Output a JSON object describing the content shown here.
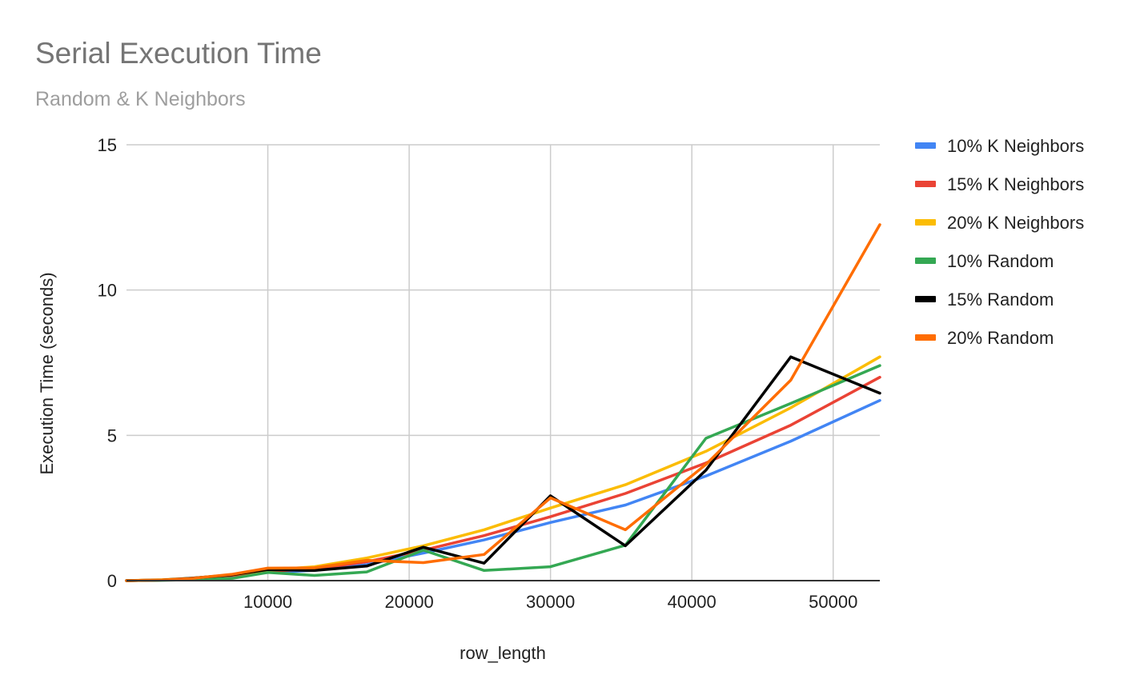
{
  "chart_data": {
    "type": "line",
    "title": "Serial Execution Time",
    "subtitle": "Random & K Neighbors",
    "xlabel": "row_length",
    "ylabel": "Execution Time (seconds)",
    "xlim": [
      0,
      53300
    ],
    "ylim": [
      0,
      15
    ],
    "xticks": [
      10000,
      20000,
      30000,
      40000,
      50000
    ],
    "yticks": [
      0,
      5,
      10,
      15
    ],
    "grid": true,
    "legend_position": "right",
    "series": [
      {
        "name": "10% K Neighbors",
        "color": "#4285F4",
        "points": [
          [
            0,
            0
          ],
          [
            2500,
            0.02
          ],
          [
            4500,
            0.06
          ],
          [
            7500,
            0.15
          ],
          [
            10000,
            0.28
          ],
          [
            13300,
            0.35
          ],
          [
            17000,
            0.55
          ],
          [
            21000,
            0.95
          ],
          [
            25300,
            1.4
          ],
          [
            30000,
            2.0
          ],
          [
            35300,
            2.6
          ],
          [
            41000,
            3.6
          ],
          [
            47000,
            4.8
          ],
          [
            53300,
            6.2
          ]
        ]
      },
      {
        "name": "15% K Neighbors",
        "color": "#EA4335",
        "points": [
          [
            0,
            0
          ],
          [
            2500,
            0.02
          ],
          [
            4500,
            0.07
          ],
          [
            7500,
            0.18
          ],
          [
            10000,
            0.32
          ],
          [
            13300,
            0.4
          ],
          [
            17000,
            0.65
          ],
          [
            21000,
            1.05
          ],
          [
            25300,
            1.55
          ],
          [
            30000,
            2.2
          ],
          [
            35300,
            3.0
          ],
          [
            41000,
            4.05
          ],
          [
            47000,
            5.35
          ],
          [
            53300,
            7.0
          ]
        ]
      },
      {
        "name": "20% K Neighbors",
        "color": "#FBBC04",
        "points": [
          [
            0,
            0
          ],
          [
            2500,
            0.03
          ],
          [
            4500,
            0.08
          ],
          [
            7500,
            0.2
          ],
          [
            10000,
            0.36
          ],
          [
            13300,
            0.48
          ],
          [
            17000,
            0.78
          ],
          [
            21000,
            1.2
          ],
          [
            25300,
            1.75
          ],
          [
            30000,
            2.5
          ],
          [
            35300,
            3.3
          ],
          [
            41000,
            4.45
          ],
          [
            47000,
            5.95
          ],
          [
            53300,
            7.7
          ]
        ]
      },
      {
        "name": "10% Random",
        "color": "#34A853",
        "points": [
          [
            0,
            0
          ],
          [
            2500,
            0.01
          ],
          [
            4500,
            0.03
          ],
          [
            7500,
            0.08
          ],
          [
            10000,
            0.28
          ],
          [
            13300,
            0.18
          ],
          [
            17000,
            0.3
          ],
          [
            21000,
            1.05
          ],
          [
            25300,
            0.35
          ],
          [
            30000,
            0.48
          ],
          [
            35300,
            1.22
          ],
          [
            41000,
            4.9
          ],
          [
            47000,
            6.1
          ],
          [
            53300,
            7.4
          ]
        ]
      },
      {
        "name": "15% Random",
        "color": "#000000",
        "points": [
          [
            0,
            0
          ],
          [
            2500,
            0.02
          ],
          [
            4500,
            0.08
          ],
          [
            7500,
            0.2
          ],
          [
            10000,
            0.38
          ],
          [
            13300,
            0.35
          ],
          [
            17000,
            0.5
          ],
          [
            21000,
            1.15
          ],
          [
            25300,
            0.6
          ],
          [
            30000,
            2.92
          ],
          [
            35300,
            1.2
          ],
          [
            41000,
            3.8
          ],
          [
            47000,
            7.7
          ],
          [
            53300,
            6.45
          ]
        ]
      },
      {
        "name": "20% Random",
        "color": "#FF6D01",
        "points": [
          [
            0,
            0
          ],
          [
            2500,
            0.02
          ],
          [
            4500,
            0.07
          ],
          [
            7500,
            0.22
          ],
          [
            10000,
            0.43
          ],
          [
            13300,
            0.44
          ],
          [
            17000,
            0.7
          ],
          [
            21000,
            0.62
          ],
          [
            25300,
            0.9
          ],
          [
            30000,
            2.85
          ],
          [
            35300,
            1.75
          ],
          [
            41000,
            4.0
          ],
          [
            47000,
            6.9
          ],
          [
            53300,
            12.25
          ]
        ]
      }
    ]
  }
}
